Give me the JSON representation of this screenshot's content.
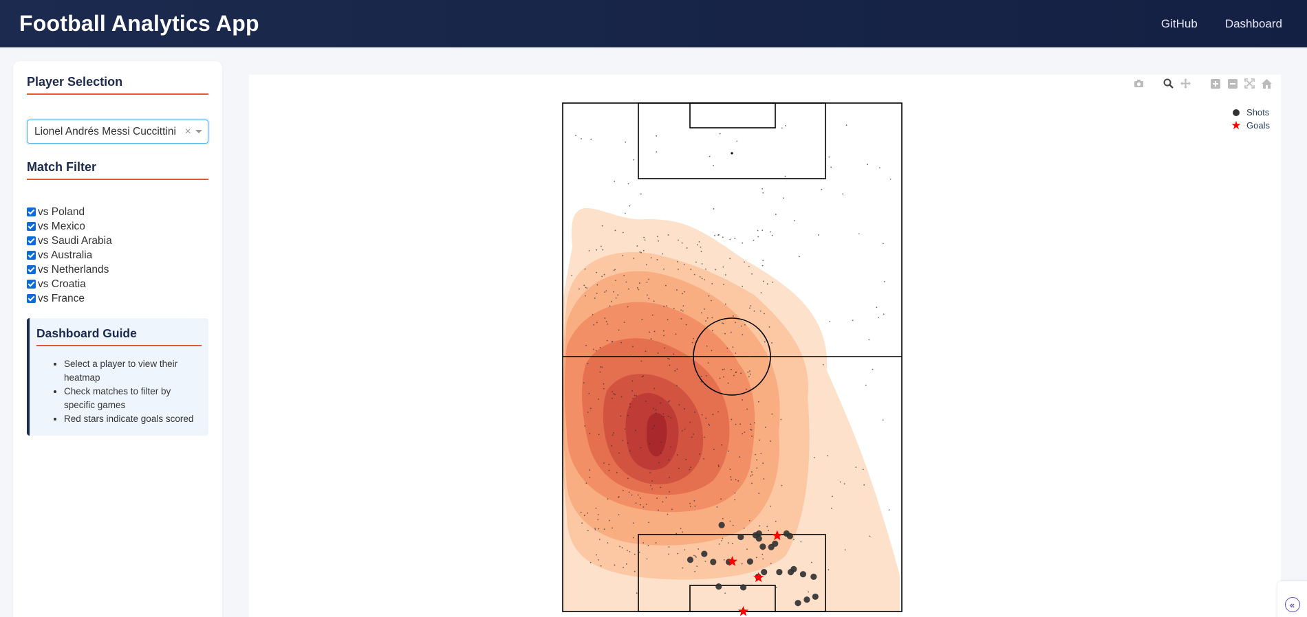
{
  "navbar": {
    "title": "Football Analytics App",
    "links": [
      {
        "label": "GitHub"
      },
      {
        "label": "Dashboard"
      }
    ]
  },
  "sidebar": {
    "player_section_title": "Player Selection",
    "player_select": {
      "value": "Lionel Andrés Messi Cuccittini"
    },
    "match_section_title": "Match Filter",
    "matches": [
      {
        "label": "vs Poland",
        "checked": true
      },
      {
        "label": "vs Mexico",
        "checked": true
      },
      {
        "label": "vs Saudi Arabia",
        "checked": true
      },
      {
        "label": "vs Australia",
        "checked": true
      },
      {
        "label": "vs Netherlands",
        "checked": true
      },
      {
        "label": "vs Croatia",
        "checked": true
      },
      {
        "label": "vs France",
        "checked": true
      }
    ],
    "guide": {
      "title": "Dashboard Guide",
      "items": [
        "Select a player to view their heatmap",
        "Check matches to filter by specific games",
        "Red stars indicate goals scored"
      ]
    }
  },
  "plot": {
    "modebar_icons": [
      "camera-icon",
      "zoom-icon",
      "pan-icon",
      "zoom-in-icon",
      "zoom-out-icon",
      "autoscale-icon",
      "reset-axes-icon"
    ],
    "legend": [
      {
        "name": "Shots",
        "symbol": "circle",
        "color": "#333333"
      },
      {
        "name": "Goals",
        "symbol": "star",
        "color": "#ff0000"
      }
    ],
    "colors": {
      "heat_light": "#fde0c9",
      "heat_dark": "#b42e2e",
      "pitch_line": "#000000"
    }
  },
  "chart_data": {
    "type": "scatter",
    "title": "",
    "xlabel": "",
    "ylabel": "",
    "series": [
      {
        "name": "Shots",
        "points": [
          [
            42,
            102.4
          ],
          [
            37.5,
            99.6
          ],
          [
            45.5,
            102
          ],
          [
            46.3,
            102.8
          ],
          [
            52.8,
            101.6
          ],
          [
            53.6,
            102.2
          ],
          [
            46.3,
            101.6
          ],
          [
            47.2,
            104.7
          ],
          [
            50.1,
            104
          ],
          [
            49.2,
            104.8
          ],
          [
            33.4,
            106.4
          ],
          [
            30.1,
            107.8
          ],
          [
            35.5,
            108.3
          ],
          [
            39.2,
            108.3
          ],
          [
            44.2,
            108.2
          ],
          [
            54.5,
            110
          ],
          [
            51.1,
            110.7
          ],
          [
            47.5,
            110.7
          ],
          [
            53.8,
            110.7
          ],
          [
            56.7,
            111.2
          ],
          [
            59.2,
            111.8
          ],
          [
            46.1,
            111.8
          ],
          [
            36.8,
            114.1
          ],
          [
            42.6,
            114.3
          ],
          [
            59.6,
            116.5
          ],
          [
            57.6,
            117.2
          ],
          [
            55.5,
            118
          ]
        ]
      },
      {
        "name": "Goals",
        "points": [
          [
            50.6,
            102.1
          ],
          [
            40,
            108.2
          ],
          [
            46.2,
            112
          ],
          [
            42.6,
            120
          ]
        ]
      }
    ]
  }
}
